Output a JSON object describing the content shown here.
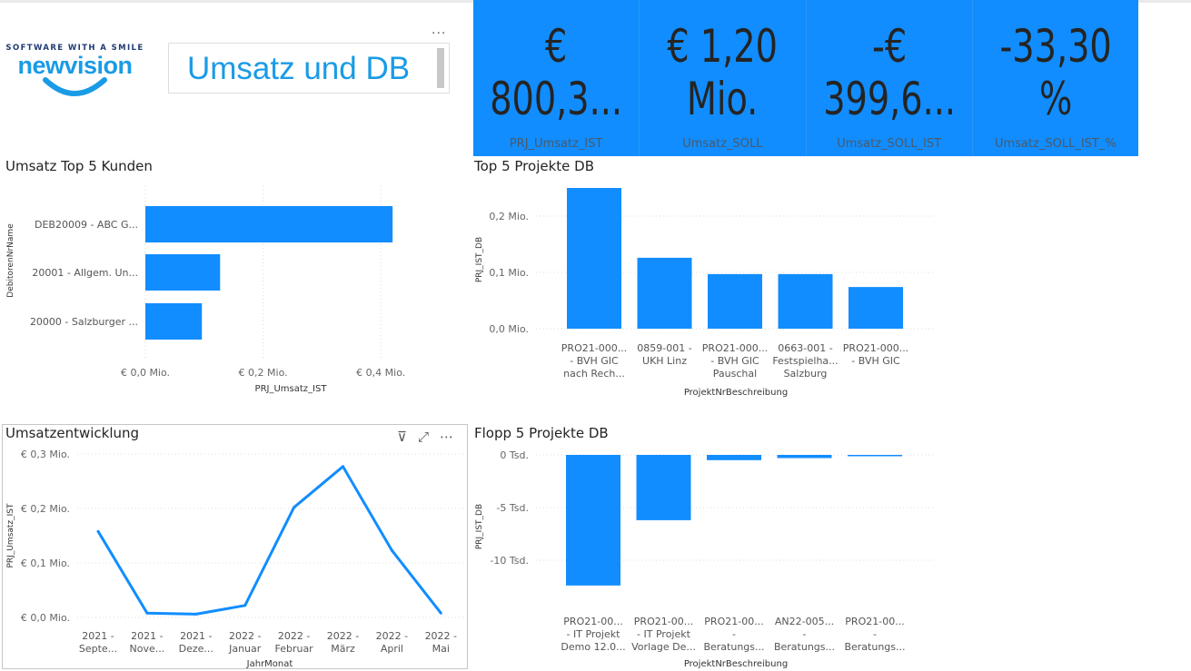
{
  "logo": {
    "tagline": "SOFTWARE WITH A SMILE",
    "name": "newvision"
  },
  "header": {
    "title": "Umsatz und DB",
    "more_label": "..."
  },
  "colors": {
    "accent": "#118dff",
    "title_text": "#1a9be6"
  },
  "kpis": [
    {
      "value": "€\n800,3...",
      "label": "PRJ_Umsatz_IST"
    },
    {
      "value": "€ 1,20\nMio.",
      "label": "Umsatz_SOLL"
    },
    {
      "value": "-€\n399,6...",
      "label": "Umsatz_SOLL_IST"
    },
    {
      "value": "-33,30\n%",
      "label": "Umsatz_SOLL_IST_%"
    }
  ],
  "visual_header_icons": [
    "filter-icon",
    "focus-mode-icon",
    "more-options-icon"
  ],
  "chart_data": [
    {
      "type": "bar",
      "orientation": "horizontal",
      "title": "Umsatz Top 5 Kunden",
      "xlabel": "PRJ_Umsatz_IST",
      "ylabel": "DebitorenNrName",
      "categories": [
        "DEB20009 - ABC G...",
        "20001 - Allgem. Un...",
        "20000 - Salzburger ..."
      ],
      "values": [
        0.42,
        0.127,
        0.096
      ],
      "unit": "Mio. €",
      "xlim": [
        0,
        0.45
      ],
      "xticks": [
        "€ 0,0 Mio.",
        "€ 0,2 Mio.",
        "€ 0,4 Mio."
      ],
      "grid": true
    },
    {
      "type": "bar",
      "title": "Top 5 Projekte DB",
      "xlabel": "ProjektNrBeschreibung",
      "ylabel": "PRJ_IST_DB",
      "categories": [
        "PRO21-000...\n- BVH GIC\nnach Rech...",
        "0859-001 -\nUKH Linz",
        "PRO21-000...\n- BVH GIC\nPauschal",
        "0663-001 -\nFestspielha...\nSalzburg",
        "PRO21-000...\n- BVH GIC"
      ],
      "values": [
        0.25,
        0.126,
        0.097,
        0.097,
        0.074
      ],
      "unit": "Mio.",
      "ylim": [
        0,
        0.25
      ],
      "yticks": [
        "0,0 Mio.",
        "0,1 Mio.",
        "0,2 Mio."
      ],
      "grid": true
    },
    {
      "type": "line",
      "title": "Umsatzentwicklung",
      "xlabel": "JahrMonat",
      "ylabel": "PRJ_Umsatz_IST",
      "categories": [
        "2021 -\nSepte...",
        "2021 -\nNove...",
        "2021 -\nDeze...",
        "2022 -\nJanuar",
        "2022 -\nFebruar",
        "2022 -\nMärz",
        "2022 -\nApril",
        "2022 -\nMai"
      ],
      "values": [
        0.158,
        0.008,
        0.006,
        0.022,
        0.202,
        0.277,
        0.123,
        0.008
      ],
      "unit": "Mio. €",
      "ylim": [
        0,
        0.3
      ],
      "yticks": [
        "€ 0,0 Mio.",
        "€ 0,1 Mio.",
        "€ 0,2 Mio.",
        "€ 0,3 Mio."
      ],
      "grid": true
    },
    {
      "type": "bar",
      "title": "Flopp 5 Projekte DB",
      "xlabel": "ProjektNrBeschreibung",
      "ylabel": "PRJ_IST_DB",
      "categories": [
        "PRO21-00...\n- IT Projekt\nDemo 12.0...",
        "PRO21-00...\n- IT Projekt\nVorlage De...",
        "PRO21-00...\n-\nBeratungs...",
        "AN22-005...\n-\nBeratungs...",
        "PRO21-00...\n-\nBeratungs..."
      ],
      "values": [
        -12.4,
        -6.2,
        -0.5,
        -0.3,
        -0.1
      ],
      "unit": "Tsd.",
      "ylim": [
        -12.5,
        0
      ],
      "yticks": [
        "0 Tsd.",
        "-5 Tsd.",
        "-10 Tsd."
      ],
      "grid": true
    }
  ]
}
